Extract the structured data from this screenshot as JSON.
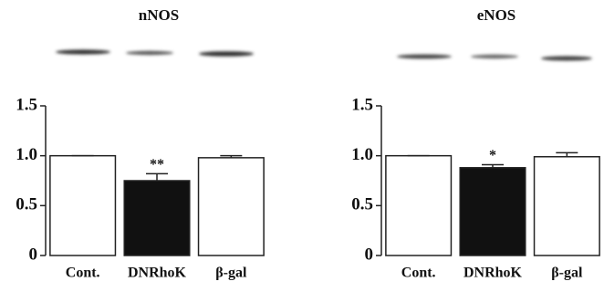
{
  "chart_data": [
    {
      "type": "bar",
      "title": "nNOS",
      "categories": [
        "Cont.",
        "DNRhoK",
        "β-gal"
      ],
      "values": [
        1.0,
        0.75,
        0.98
      ],
      "errors": [
        0,
        0.07,
        0.02
      ],
      "colors": [
        "#ffffff",
        "#111111",
        "#ffffff"
      ],
      "annotations": [
        {
          "category": "DNRhoK",
          "text": "**"
        }
      ],
      "ylim": [
        0,
        1.5
      ],
      "yticks": [
        0,
        0.5,
        {
          "value": 1,
          "label": "1.0"
        },
        1.5
      ]
    },
    {
      "type": "bar",
      "title": "eNOS",
      "categories": [
        "Cont.",
        "DNRhoK",
        "β-gal"
      ],
      "values": [
        1.0,
        0.88,
        0.99
      ],
      "errors": [
        0,
        0.03,
        0.04
      ],
      "colors": [
        "#ffffff",
        "#111111",
        "#ffffff"
      ],
      "annotations": [
        {
          "category": "DNRhoK",
          "text": "*"
        }
      ],
      "ylim": [
        0,
        1.5
      ],
      "yticks": [
        0,
        0.5,
        {
          "value": 1,
          "label": "1.0"
        },
        1.5
      ]
    }
  ]
}
